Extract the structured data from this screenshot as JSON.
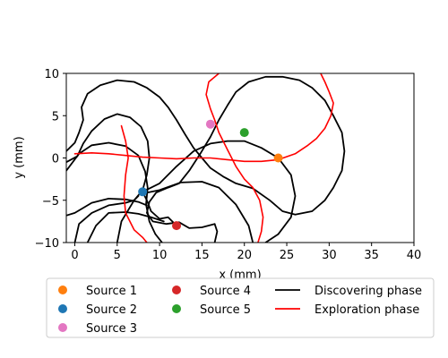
{
  "chart_data": {
    "type": "line",
    "title": "",
    "xlabel": "x (mm)",
    "ylabel": "y (mm)",
    "xlim": [
      -1,
      40
    ],
    "ylim": [
      -10,
      10
    ],
    "xticks": [
      0,
      5,
      10,
      15,
      20,
      25,
      30,
      35,
      40
    ],
    "yticks": [
      -10,
      -5,
      0,
      5,
      10
    ],
    "grid": false,
    "legend_position": "bottom",
    "sources": [
      {
        "name": "Source 1",
        "x": 24,
        "y": 0,
        "color": "#ff7f0e"
      },
      {
        "name": "Source 2",
        "x": 8,
        "y": -4,
        "color": "#1f77b4"
      },
      {
        "name": "Source 3",
        "x": 16,
        "y": 4,
        "color": "#e377c2"
      },
      {
        "name": "Source 4",
        "x": 12,
        "y": -8,
        "color": "#d62728"
      },
      {
        "name": "Source 5",
        "x": 20,
        "y": 3,
        "color": "#2ca02c"
      }
    ],
    "series": [
      {
        "name": "Discovering phase",
        "color": "#000000",
        "segments": [
          [
            [
              -1,
              -6.8
            ],
            [
              0,
              -6.5
            ],
            [
              2,
              -5.3
            ],
            [
              4,
              -4.8
            ],
            [
              6,
              -4.9
            ],
            [
              7.5,
              -5.2
            ],
            [
              8.5,
              -5.6
            ]
          ],
          [
            [
              8,
              -4
            ],
            [
              10,
              -3
            ],
            [
              12,
              -1
            ],
            [
              14,
              0.8
            ],
            [
              16,
              1.7
            ],
            [
              18,
              2
            ],
            [
              20,
              2
            ],
            [
              22,
              1.2
            ],
            [
              24,
              0
            ],
            [
              25.5,
              -2
            ],
            [
              26,
              -4.5
            ],
            [
              25.5,
              -7
            ],
            [
              24,
              -9
            ],
            [
              22.5,
              -10
            ]
          ],
          [
            [
              21,
              -10
            ],
            [
              20.5,
              -8
            ],
            [
              19,
              -5.5
            ],
            [
              17,
              -3.5
            ],
            [
              15,
              -2.8
            ],
            [
              12.5,
              -2.9
            ],
            [
              10,
              -3.8
            ],
            [
              8,
              -4.2
            ]
          ],
          [
            [
              8,
              -4
            ],
            [
              8.5,
              -5
            ],
            [
              9,
              -6.3
            ],
            [
              10,
              -7.2
            ],
            [
              11,
              -7
            ],
            [
              11.5,
              -7.5
            ],
            [
              12,
              -8
            ]
          ],
          [
            [
              7.5,
              -4.5
            ],
            [
              7,
              -5
            ],
            [
              6,
              -5.3
            ],
            [
              4,
              -5.6
            ],
            [
              2,
              -6.5
            ],
            [
              0.5,
              -7.8
            ],
            [
              0,
              -10
            ]
          ],
          [
            [
              1.5,
              -10
            ],
            [
              2.5,
              -8
            ],
            [
              4,
              -6.5
            ],
            [
              6,
              -6.4
            ],
            [
              7.5,
              -6.6
            ],
            [
              9,
              -7
            ],
            [
              10.5,
              -7.5
            ]
          ],
          [
            [
              5,
              -10
            ],
            [
              5.5,
              -7.5
            ],
            [
              7,
              -5
            ],
            [
              8,
              -3.8
            ],
            [
              8.5,
              -2
            ],
            [
              8.8,
              0
            ],
            [
              8.6,
              2
            ],
            [
              7.8,
              3.7
            ],
            [
              6.5,
              4.8
            ],
            [
              5,
              5.2
            ],
            [
              3.5,
              4.6
            ],
            [
              2,
              3.2
            ],
            [
              1,
              1.7
            ],
            [
              0.3,
              0.2
            ],
            [
              -1,
              -0.5
            ]
          ],
          [
            [
              -1,
              -1.5
            ],
            [
              0.5,
              0.5
            ],
            [
              2,
              1.5
            ],
            [
              4,
              1.8
            ],
            [
              6,
              1.4
            ],
            [
              7.5,
              0.3
            ],
            [
              8.3,
              -1.6
            ],
            [
              8.6,
              -3.5
            ],
            [
              8.4,
              -5.5
            ],
            [
              8.8,
              -7.5
            ],
            [
              9.5,
              -9
            ],
            [
              10.3,
              -10
            ]
          ],
          [
            [
              -1,
              0.8
            ],
            [
              0,
              1.8
            ],
            [
              0.5,
              3
            ],
            [
              1,
              4.5
            ],
            [
              0.8,
              6
            ],
            [
              1.5,
              7.6
            ],
            [
              3,
              8.6
            ],
            [
              5,
              9.2
            ],
            [
              7,
              9
            ],
            [
              8.5,
              8.3
            ],
            [
              10,
              7.2
            ],
            [
              11,
              6
            ],
            [
              12,
              4.5
            ],
            [
              13,
              2.8
            ],
            [
              14,
              1.2
            ],
            [
              15,
              0
            ],
            [
              16,
              -1.2
            ],
            [
              17.5,
              -2.2
            ],
            [
              19,
              -3
            ],
            [
              21,
              -3.6
            ],
            [
              23,
              -5
            ],
            [
              24.5,
              -6.3
            ],
            [
              26,
              -6.7
            ],
            [
              28,
              -6.3
            ],
            [
              29.5,
              -5
            ],
            [
              30.5,
              -3.5
            ],
            [
              31.5,
              -1.5
            ],
            [
              31.8,
              0.8
            ],
            [
              31.5,
              3
            ],
            [
              30.5,
              5
            ],
            [
              29.5,
              6.8
            ],
            [
              28,
              8.3
            ],
            [
              26.5,
              9.2
            ],
            [
              24.5,
              9.6
            ],
            [
              22.5,
              9.6
            ],
            [
              20.5,
              9
            ],
            [
              19,
              7.8
            ],
            [
              18,
              6.2
            ],
            [
              17,
              4.5
            ],
            [
              16,
              2.5
            ],
            [
              14.8,
              0.5
            ],
            [
              13.5,
              -1.5
            ],
            [
              12.3,
              -3
            ],
            [
              11,
              -3.5
            ],
            [
              9.6,
              -4.1
            ],
            [
              8.8,
              -5.2
            ],
            [
              8.5,
              -6.5
            ],
            [
              9.2,
              -7.5
            ],
            [
              10.8,
              -7.8
            ],
            [
              12.3,
              -7.6
            ],
            [
              13.5,
              -8.3
            ],
            [
              15,
              -8.2
            ],
            [
              16.5,
              -7.8
            ],
            [
              16.8,
              -8.7
            ],
            [
              16.5,
              -10
            ]
          ]
        ]
      },
      {
        "name": "Exploration phase",
        "color": "#ff0000",
        "segments": [
          [
            [
              0,
              0.5
            ],
            [
              2,
              0.6
            ],
            [
              4,
              0.5
            ],
            [
              6,
              0.3
            ],
            [
              8,
              0.1
            ],
            [
              10,
              0
            ],
            [
              12,
              -0.1
            ],
            [
              14,
              0
            ],
            [
              16,
              0
            ],
            [
              18,
              -0.2
            ],
            [
              20,
              -0.4
            ],
            [
              22,
              -0.4
            ],
            [
              24,
              -0.2
            ],
            [
              26,
              0.5
            ],
            [
              27.5,
              1.5
            ],
            [
              28.5,
              2.3
            ],
            [
              29.5,
              3.5
            ],
            [
              30.2,
              5
            ],
            [
              30.5,
              6.5
            ],
            [
              30,
              7.8
            ],
            [
              29.5,
              9
            ],
            [
              29,
              10
            ]
          ],
          [
            [
              5.5,
              3.8
            ],
            [
              6,
              2
            ],
            [
              6.3,
              0
            ],
            [
              6,
              -2
            ],
            [
              5.8,
              -4.5
            ],
            [
              6,
              -6.5
            ],
            [
              7,
              -8.5
            ],
            [
              8,
              -9.4
            ],
            [
              8.5,
              -10
            ]
          ],
          [
            [
              17,
              10
            ],
            [
              15.8,
              9
            ],
            [
              15.5,
              7.5
            ],
            [
              16,
              5.8
            ],
            [
              16.5,
              4.5
            ],
            [
              17,
              3
            ],
            [
              18,
              1
            ],
            [
              19,
              -1
            ],
            [
              20,
              -2.5
            ],
            [
              21,
              -3.5
            ],
            [
              21.8,
              -5
            ],
            [
              22.2,
              -7
            ],
            [
              22,
              -8.7
            ],
            [
              21.6,
              -10
            ]
          ]
        ]
      }
    ]
  }
}
